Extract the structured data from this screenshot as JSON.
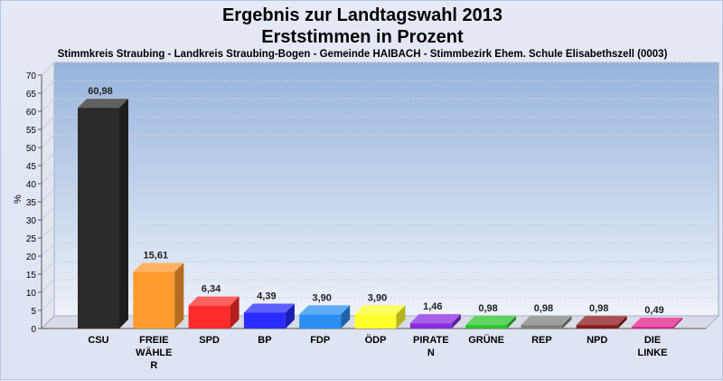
{
  "chart_data": {
    "type": "bar",
    "title": "Ergebnis zur Landtagswahl 2013",
    "subtitle": "Erststimmen in Prozent",
    "caption": "Stimmkreis Straubing - Landkreis Straubing-Bogen - Gemeinde HAIBACH - Stimmbezirk Ehem. Schule Elisabethszell (0003)",
    "ylabel": "%",
    "xlabel": "",
    "ylim": [
      0,
      70
    ],
    "yticks": [
      0,
      5,
      10,
      15,
      20,
      25,
      30,
      35,
      40,
      45,
      50,
      55,
      60,
      65,
      70
    ],
    "grid": true,
    "categories": [
      [
        "CSU"
      ],
      [
        "FREIE",
        "WÄHLE",
        "R"
      ],
      [
        "SPD"
      ],
      [
        "BP"
      ],
      [
        "FDP"
      ],
      [
        "ÖDP"
      ],
      [
        "PIRATE",
        "N"
      ],
      [
        "GRÜNE"
      ],
      [
        "REP"
      ],
      [
        "NPD"
      ],
      [
        "DIE",
        "LINKE"
      ]
    ],
    "values": [
      60.98,
      15.61,
      6.34,
      4.39,
      3.9,
      3.9,
      1.46,
      0.98,
      0.98,
      0.98,
      0.49
    ],
    "value_labels": [
      "60,98",
      "15,61",
      "6,34",
      "4,39",
      "3,90",
      "3,90",
      "1,46",
      "0,98",
      "0,98",
      "0,98",
      "0,49"
    ],
    "colors": [
      "#2b2b2b",
      "#ff9a2e",
      "#ff2b2b",
      "#2b2bff",
      "#2a8ff0",
      "#ffff2b",
      "#8a2be0",
      "#2bc42b",
      "#808080",
      "#8a1a1a",
      "#e0208a"
    ]
  }
}
